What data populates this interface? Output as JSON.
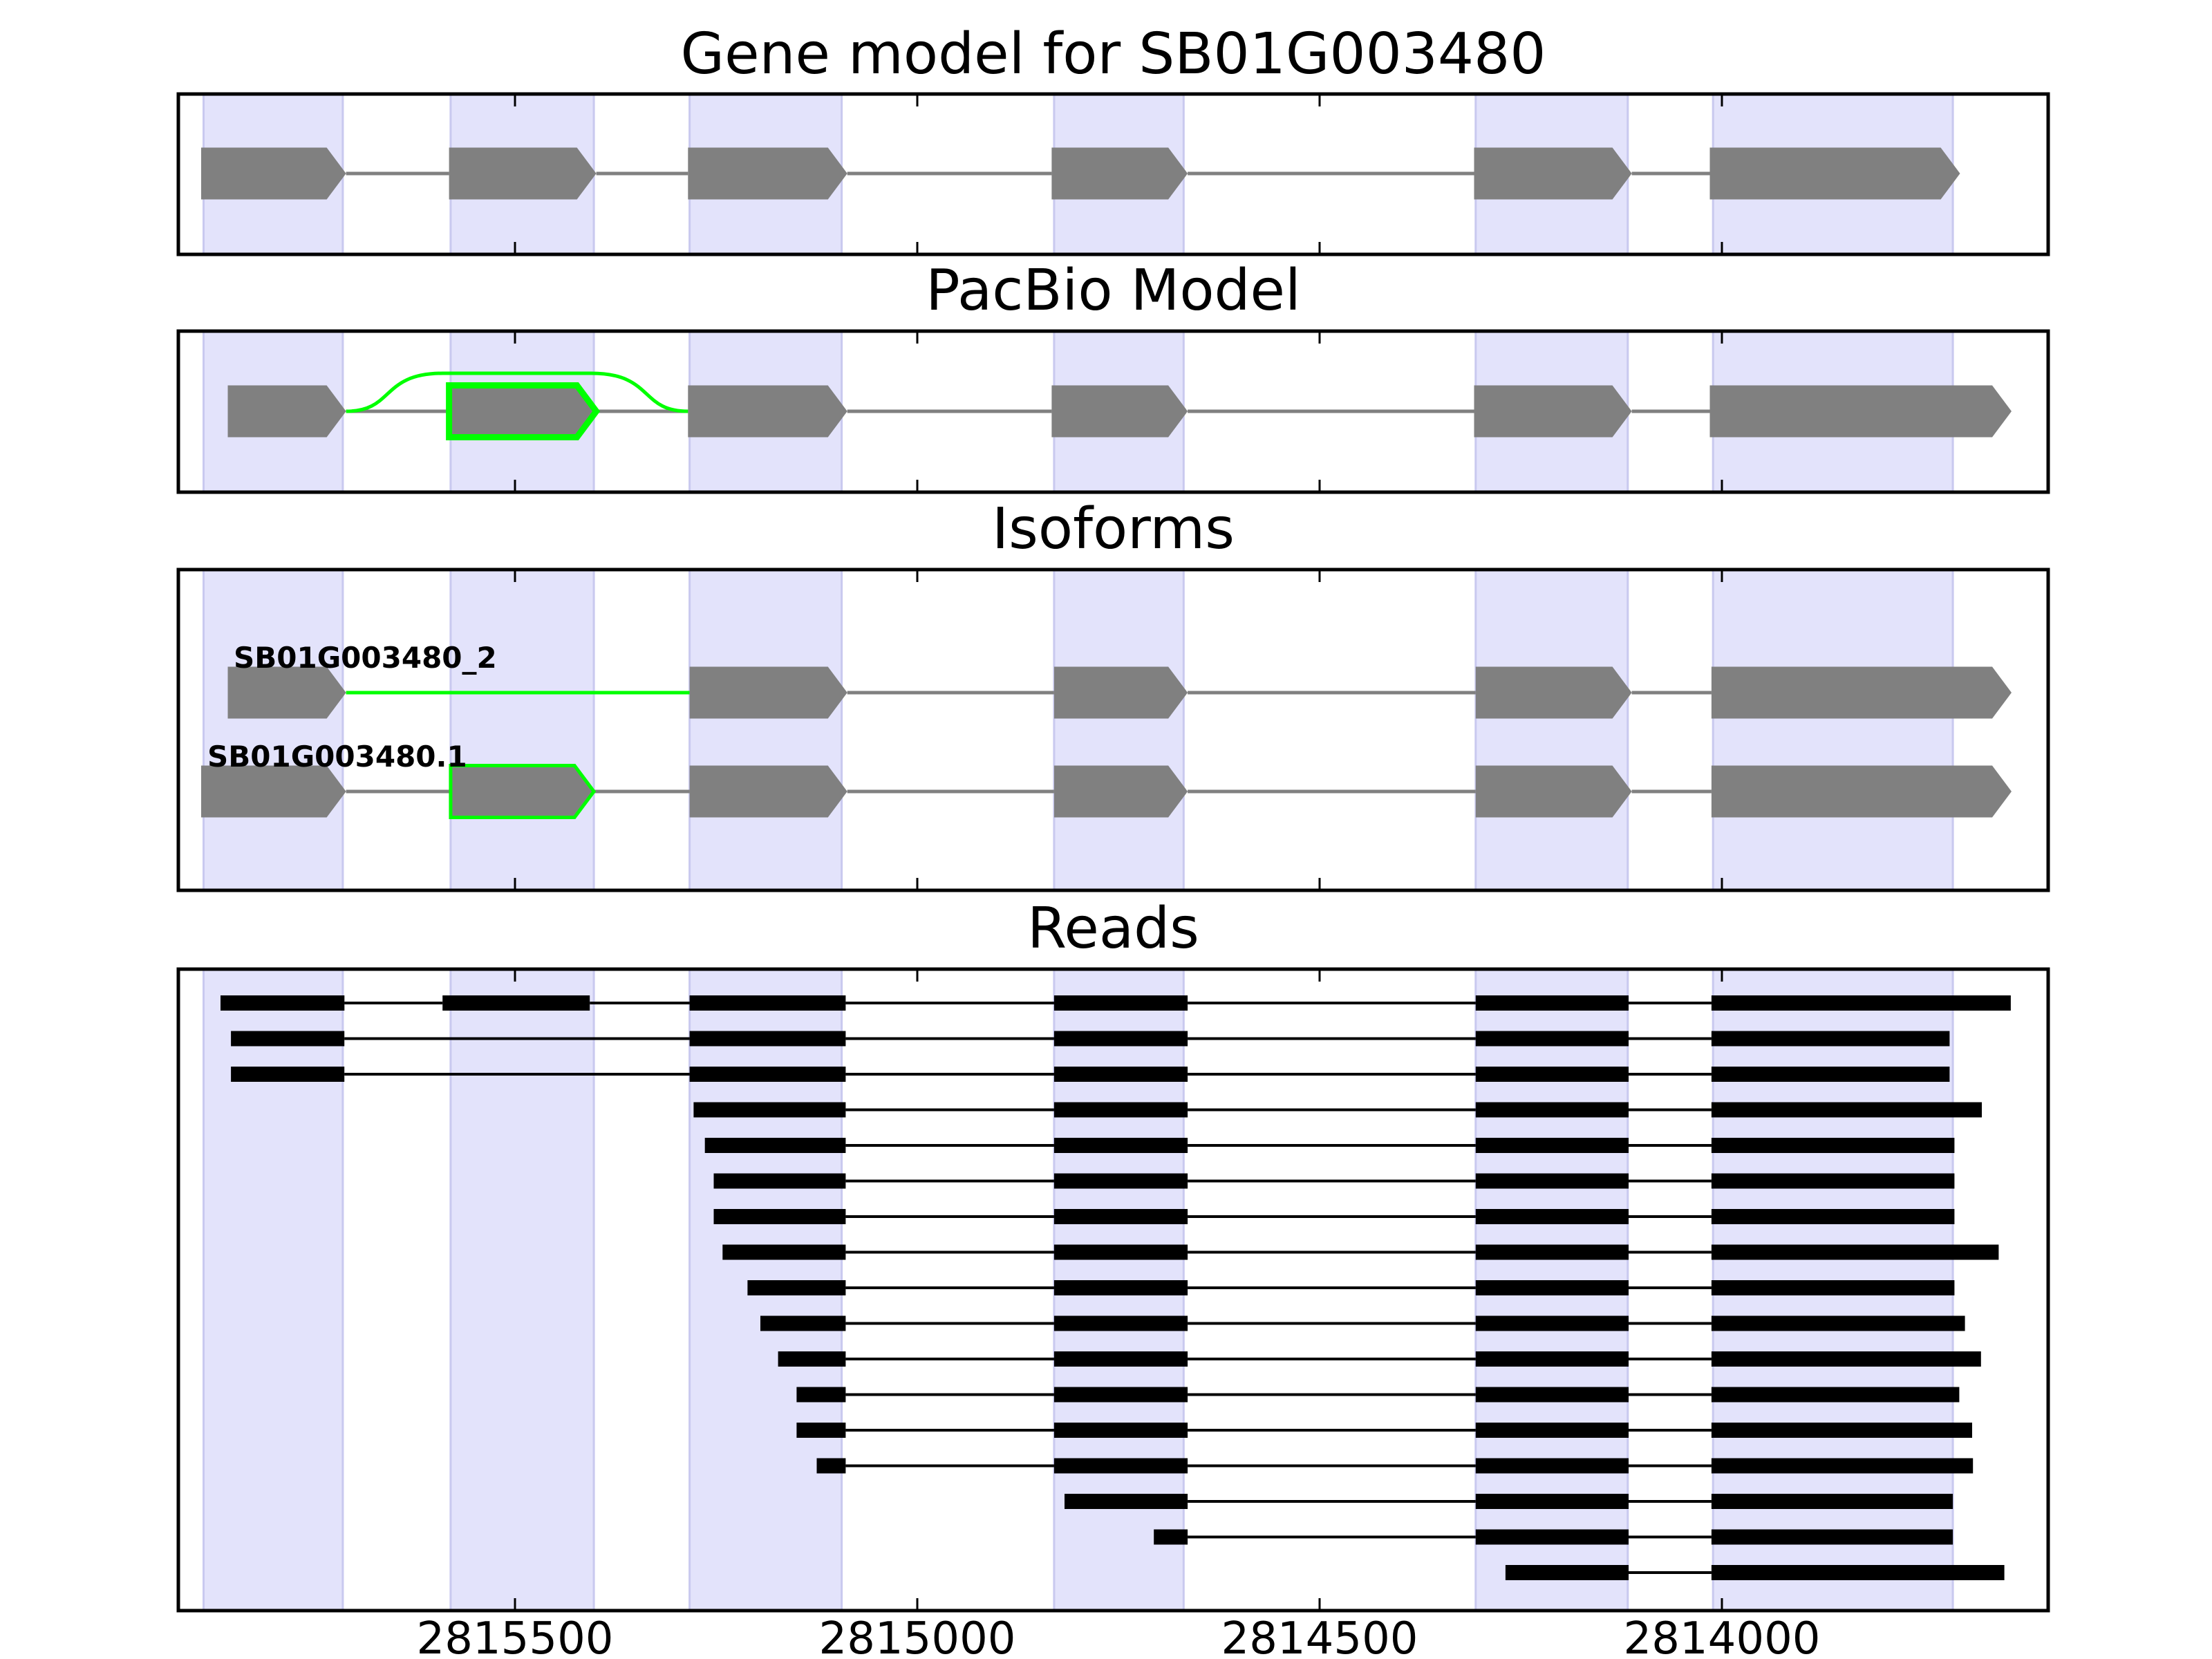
{
  "chart_data": {
    "type": "gene-track",
    "x_axis": {
      "reversed": true,
      "ticks": [
        2815500,
        2815000,
        2814500,
        2814000
      ],
      "tick_labels": [
        "2815500",
        "2815000",
        "2814500",
        "2814000"
      ]
    },
    "exon_regions": [
      [
        2815887,
        2815714
      ],
      [
        2815580,
        2815402
      ],
      [
        2815283,
        2815094
      ],
      [
        2814830,
        2814669
      ],
      [
        2814306,
        2814117
      ],
      [
        2814011,
        2813713
      ]
    ],
    "colors": {
      "exon_fill": "#808080",
      "intron_line": "#808080",
      "highlight": "#00ff00",
      "region_shade": "#e3e3fb",
      "region_edge": "#c9c9ef",
      "read": "#000000",
      "frame": "#000000"
    },
    "panels": [
      {
        "id": "gene-model",
        "title": "Gene model for SB01G003480",
        "tracks": [
          {
            "exons": [
              [
                2815890,
                2815710
              ],
              [
                2815582,
                2815399
              ],
              [
                2815285,
                2815087
              ],
              [
                2814833,
                2814664
              ],
              [
                2814308,
                2814112
              ],
              [
                2814015,
                2813704
              ]
            ]
          }
        ]
      },
      {
        "id": "pacbio-model",
        "title": "PacBio Model",
        "tracks": [
          {
            "exons": [
              [
                2815857,
                2815710
              ],
              [
                2815582,
                2815399
              ],
              [
                2815285,
                2815087
              ],
              [
                2814833,
                2814664
              ],
              [
                2814308,
                2814112
              ],
              [
                2814015,
                2813640
              ]
            ],
            "highlighted_exon": 1,
            "skip_arc": true
          }
        ]
      },
      {
        "id": "isoforms",
        "title": "Isoforms",
        "tracks": [
          {
            "label": "SB01G003480_2",
            "exons": [
              [
                2815857,
                2815710
              ],
              [
                2815283,
                2815087
              ],
              [
                2814830,
                2814664
              ],
              [
                2814306,
                2814112
              ],
              [
                2814013,
                2813640
              ]
            ],
            "highlighted_intron": 0
          },
          {
            "label": "SB01G003480.1",
            "exons": [
              [
                2815890,
                2815710
              ],
              [
                2815580,
                2815402
              ],
              [
                2815283,
                2815087
              ],
              [
                2814830,
                2814664
              ],
              [
                2814306,
                2814112
              ],
              [
                2814013,
                2813640
              ]
            ],
            "highlighted_exon": 1
          }
        ]
      },
      {
        "id": "reads",
        "title": "Reads",
        "reads": [
          [
            [
              2815866,
              2815712
            ],
            [
              2815590,
              2815407
            ],
            [
              2815283,
              2815089
            ],
            [
              2814830,
              2814664
            ],
            [
              2814306,
              2814116
            ],
            [
              2814013,
              2813641
            ]
          ],
          [
            [
              2815853,
              2815712
            ],
            [
              2815283,
              2815089
            ],
            [
              2814830,
              2814664
            ],
            [
              2814306,
              2814116
            ],
            [
              2814013,
              2813717
            ]
          ],
          [
            [
              2815853,
              2815712
            ],
            [
              2815283,
              2815089
            ],
            [
              2814830,
              2814664
            ],
            [
              2814306,
              2814116
            ],
            [
              2814013,
              2813717
            ]
          ],
          [
            [
              2815278,
              2815089
            ],
            [
              2814830,
              2814664
            ],
            [
              2814306,
              2814116
            ],
            [
              2814013,
              2813677
            ]
          ],
          [
            [
              2815264,
              2815089
            ],
            [
              2814830,
              2814664
            ],
            [
              2814306,
              2814116
            ],
            [
              2814013,
              2813711
            ]
          ],
          [
            [
              2815253,
              2815089
            ],
            [
              2814830,
              2814664
            ],
            [
              2814306,
              2814116
            ],
            [
              2814013,
              2813711
            ]
          ],
          [
            [
              2815253,
              2815089
            ],
            [
              2814830,
              2814664
            ],
            [
              2814306,
              2814116
            ],
            [
              2814013,
              2813711
            ]
          ],
          [
            [
              2815242,
              2815089
            ],
            [
              2814830,
              2814664
            ],
            [
              2814306,
              2814116
            ],
            [
              2814013,
              2813656
            ]
          ],
          [
            [
              2815211,
              2815089
            ],
            [
              2814830,
              2814664
            ],
            [
              2814306,
              2814116
            ],
            [
              2814013,
              2813711
            ]
          ],
          [
            [
              2815195,
              2815089
            ],
            [
              2814830,
              2814664
            ],
            [
              2814306,
              2814116
            ],
            [
              2814013,
              2813698
            ]
          ],
          [
            [
              2815173,
              2815089
            ],
            [
              2814830,
              2814664
            ],
            [
              2814306,
              2814116
            ],
            [
              2814013,
              2813678
            ]
          ],
          [
            [
              2815150,
              2815089
            ],
            [
              2814830,
              2814664
            ],
            [
              2814306,
              2814116
            ],
            [
              2814013,
              2813705
            ]
          ],
          [
            [
              2815150,
              2815089
            ],
            [
              2814830,
              2814664
            ],
            [
              2814306,
              2814116
            ],
            [
              2814013,
              2813689
            ]
          ],
          [
            [
              2815125,
              2815089
            ],
            [
              2814830,
              2814664
            ],
            [
              2814306,
              2814116
            ],
            [
              2814013,
              2813688
            ]
          ],
          [
            [
              2814817,
              2814664
            ],
            [
              2814306,
              2814116
            ],
            [
              2814013,
              2813713
            ]
          ],
          [
            [
              2814706,
              2814664
            ],
            [
              2814306,
              2814116
            ],
            [
              2814013,
              2813713
            ]
          ],
          [
            [
              2814269,
              2814116
            ],
            [
              2814013,
              2813649
            ]
          ]
        ]
      }
    ]
  }
}
